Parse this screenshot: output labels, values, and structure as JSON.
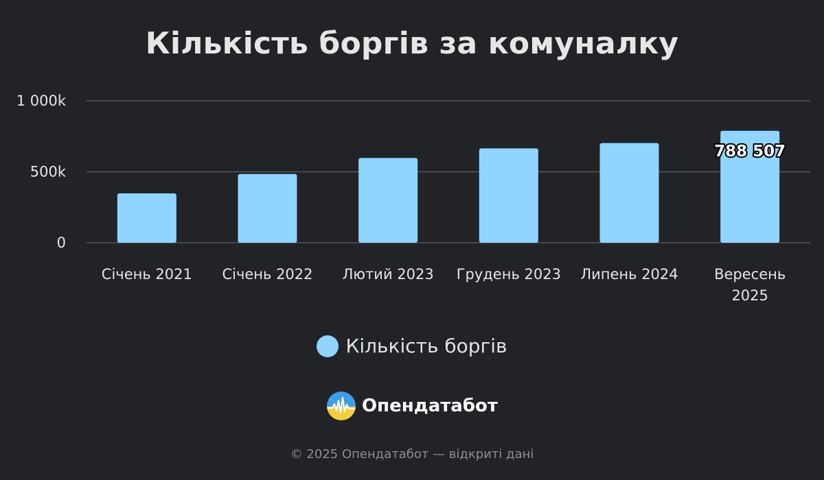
{
  "chart_data": {
    "type": "bar",
    "title": "Кількість боргів за комуналку",
    "categories": [
      "Січень 2021",
      "Січень 2022",
      "Лютий 2023",
      "Грудень 2023",
      "Липень 2024",
      "Вересень 2025"
    ],
    "category_lines": [
      [
        "Січень 2021"
      ],
      [
        "Січень 2022"
      ],
      [
        "Лютий 2023"
      ],
      [
        "Грудень 2023"
      ],
      [
        "Липень 2024"
      ],
      [
        "Вересень",
        "2025"
      ]
    ],
    "series": [
      {
        "name": "Кількість боргів",
        "values": [
          348000,
          484000,
          597000,
          665000,
          702000,
          788507
        ]
      }
    ],
    "data_labels": [
      {
        "index": 5,
        "text": "788 507"
      }
    ],
    "ylim": [
      0,
      1000000
    ],
    "yticks": [
      {
        "value": 0,
        "label": "0"
      },
      {
        "value": 500000,
        "label": "500k"
      },
      {
        "value": 1000000,
        "label": "1 000k"
      }
    ],
    "grid": true,
    "legend_position": "bottom",
    "bar_color": "#8fd5ff",
    "grid_color": "#55585d"
  },
  "brand": {
    "name": "Опендатабот",
    "logo_icon": "opendatabot-logo-icon"
  },
  "footer": {
    "text": "© 2025 Опендатабот — відкриті дані"
  }
}
